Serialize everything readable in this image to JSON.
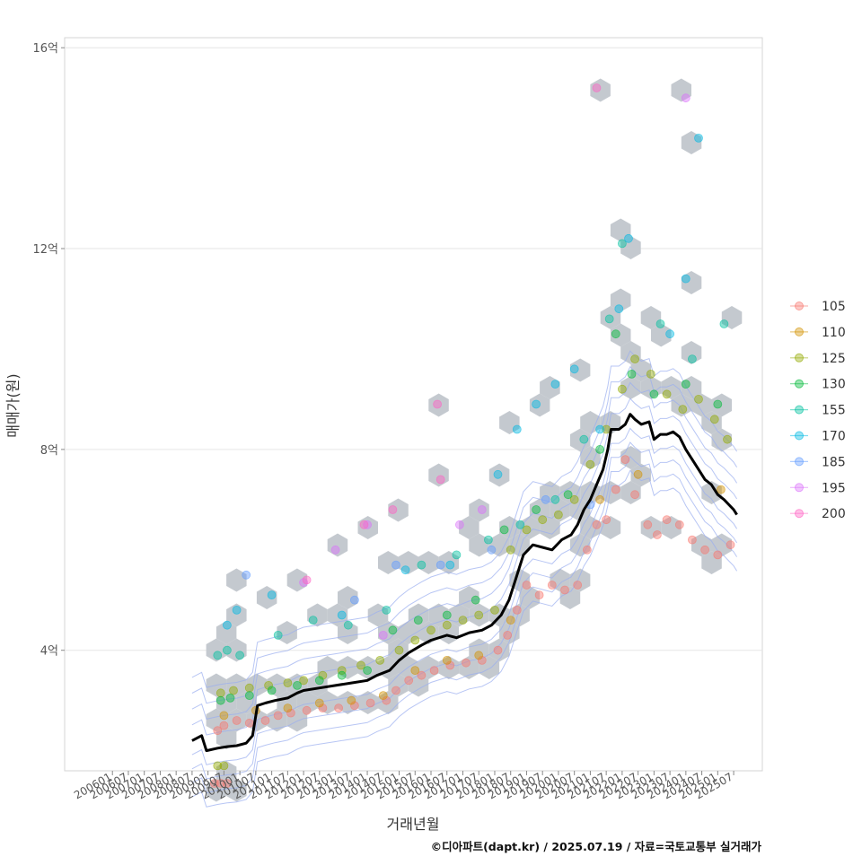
{
  "chart_data": {
    "type": "scatter",
    "title": "",
    "xlabel": "거래년월",
    "ylabel": "매매가(원)",
    "caption": "©디아파트(dapt.kr) / 2025.07.19 / 자료=국토교통부 실거래가",
    "x_range": [
      2004.5,
      2026.4
    ],
    "y_range_eok": [
      1.6,
      16.2
    ],
    "y_ticks": [
      {
        "value": 4,
        "label": "4억"
      },
      {
        "value": 8,
        "label": "8억"
      },
      {
        "value": 12,
        "label": "12억"
      },
      {
        "value": 16,
        "label": "16억"
      }
    ],
    "x_ticks": [
      "200601",
      "200607",
      "200701",
      "200707",
      "200801",
      "200807",
      "200901",
      "200907",
      "201001",
      "201007",
      "201101",
      "201107",
      "201201",
      "201207",
      "201301",
      "201307",
      "201401",
      "201407",
      "201501",
      "201507",
      "201601",
      "201607",
      "201701",
      "201707",
      "201801",
      "201807",
      "201901",
      "201907",
      "202001",
      "202007",
      "202101",
      "202107",
      "202201",
      "202207",
      "202301",
      "202307",
      "202401",
      "202407",
      "202501",
      "202507"
    ],
    "legend": {
      "placement": "right",
      "items": [
        {
          "label": "105",
          "color": "#F8766D"
        },
        {
          "label": "110",
          "color": "#D39200"
        },
        {
          "label": "125",
          "color": "#93AA00"
        },
        {
          "label": "130",
          "color": "#00BA38"
        },
        {
          "label": "155",
          "color": "#00C19F"
        },
        {
          "label": "170",
          "color": "#00B9E3"
        },
        {
          "label": "185",
          "color": "#619CFF"
        },
        {
          "label": "195",
          "color": "#DB72FB"
        },
        {
          "label": "200",
          "color": "#FF61C3"
        }
      ]
    },
    "median_line": {
      "name": "median price",
      "color": "#000000",
      "points": [
        [
          2008.5,
          2.2
        ],
        [
          2008.8,
          2.3
        ],
        [
          2008.95,
          2.0
        ],
        [
          2009.3,
          2.05
        ],
        [
          2009.6,
          2.08
        ],
        [
          2009.9,
          2.1
        ],
        [
          2010.2,
          2.15
        ],
        [
          2010.4,
          2.3
        ],
        [
          2010.55,
          2.9
        ],
        [
          2010.8,
          2.95
        ],
        [
          2011.1,
          3.0
        ],
        [
          2011.5,
          3.05
        ],
        [
          2011.8,
          3.15
        ],
        [
          2012.0,
          3.2
        ],
        [
          2012.5,
          3.25
        ],
        [
          2013.0,
          3.3
        ],
        [
          2013.5,
          3.35
        ],
        [
          2014.0,
          3.4
        ],
        [
          2014.3,
          3.5
        ],
        [
          2014.7,
          3.6
        ],
        [
          2015.0,
          3.8
        ],
        [
          2015.3,
          3.95
        ],
        [
          2015.7,
          4.1
        ],
        [
          2016.0,
          4.2
        ],
        [
          2016.5,
          4.3
        ],
        [
          2016.8,
          4.25
        ],
        [
          2017.2,
          4.35
        ],
        [
          2017.6,
          4.4
        ],
        [
          2017.9,
          4.5
        ],
        [
          2018.2,
          4.7
        ],
        [
          2018.45,
          5.0
        ],
        [
          2018.7,
          5.5
        ],
        [
          2018.9,
          5.9
        ],
        [
          2019.2,
          6.1
        ],
        [
          2019.5,
          6.05
        ],
        [
          2019.8,
          6.0
        ],
        [
          2020.1,
          6.2
        ],
        [
          2020.4,
          6.3
        ],
        [
          2020.6,
          6.5
        ],
        [
          2020.8,
          6.8
        ],
        [
          2021.0,
          7.0
        ],
        [
          2021.2,
          7.3
        ],
        [
          2021.4,
          7.6
        ],
        [
          2021.55,
          8.0
        ],
        [
          2021.65,
          8.4
        ],
        [
          2021.9,
          8.4
        ],
        [
          2022.1,
          8.5
        ],
        [
          2022.25,
          8.7
        ],
        [
          2022.4,
          8.6
        ],
        [
          2022.6,
          8.5
        ],
        [
          2022.85,
          8.55
        ],
        [
          2023.0,
          8.2
        ],
        [
          2023.2,
          8.3
        ],
        [
          2023.4,
          8.3
        ],
        [
          2023.6,
          8.35
        ],
        [
          2023.8,
          8.25
        ],
        [
          2024.0,
          8.0
        ],
        [
          2024.2,
          7.8
        ],
        [
          2024.4,
          7.6
        ],
        [
          2024.6,
          7.4
        ],
        [
          2024.8,
          7.3
        ],
        [
          2025.0,
          7.1
        ],
        [
          2025.2,
          7.0
        ],
        [
          2025.35,
          6.9
        ],
        [
          2025.5,
          6.8
        ],
        [
          2025.6,
          6.7
        ]
      ]
    },
    "series": [
      {
        "name": "105",
        "points": [
          [
            2009.2,
            1.35
          ],
          [
            2009.4,
            1.35
          ],
          [
            2009.6,
            1.35
          ],
          [
            2009.3,
            2.4
          ],
          [
            2009.5,
            2.5
          ],
          [
            2009.9,
            2.6
          ],
          [
            2010.3,
            2.55
          ],
          [
            2010.8,
            2.6
          ],
          [
            2011.2,
            2.7
          ],
          [
            2011.6,
            2.75
          ],
          [
            2012.1,
            2.8
          ],
          [
            2012.6,
            2.85
          ],
          [
            2013.1,
            2.85
          ],
          [
            2013.6,
            2.9
          ],
          [
            2014.1,
            2.95
          ],
          [
            2014.6,
            3.0
          ],
          [
            2014.9,
            3.2
          ],
          [
            2015.3,
            3.4
          ],
          [
            2015.7,
            3.5
          ],
          [
            2016.1,
            3.6
          ],
          [
            2016.6,
            3.7
          ],
          [
            2017.1,
            3.75
          ],
          [
            2017.6,
            3.8
          ],
          [
            2018.1,
            4.0
          ],
          [
            2018.4,
            4.3
          ],
          [
            2018.7,
            4.8
          ],
          [
            2019.0,
            5.3
          ],
          [
            2019.4,
            5.1
          ],
          [
            2019.8,
            5.3
          ],
          [
            2020.2,
            5.2
          ],
          [
            2020.6,
            5.3
          ],
          [
            2020.9,
            6.0
          ],
          [
            2021.2,
            6.5
          ],
          [
            2021.5,
            6.6
          ],
          [
            2021.8,
            7.2
          ],
          [
            2022.1,
            7.8
          ],
          [
            2022.4,
            7.1
          ],
          [
            2022.8,
            6.5
          ],
          [
            2023.1,
            6.3
          ],
          [
            2023.4,
            6.6
          ],
          [
            2023.8,
            6.5
          ],
          [
            2024.2,
            6.2
          ],
          [
            2024.6,
            6.0
          ],
          [
            2025.0,
            5.9
          ],
          [
            2025.4,
            6.1
          ]
        ]
      },
      {
        "name": "110",
        "points": [
          [
            2009.5,
            2.7
          ],
          [
            2010.5,
            2.8
          ],
          [
            2011.5,
            2.85
          ],
          [
            2012.5,
            2.95
          ],
          [
            2013.5,
            3.0
          ],
          [
            2014.5,
            3.1
          ],
          [
            2015.5,
            3.6
          ],
          [
            2016.5,
            3.8
          ],
          [
            2017.5,
            3.9
          ],
          [
            2018.5,
            4.6
          ],
          [
            2021.3,
            7.0
          ],
          [
            2022.5,
            7.5
          ],
          [
            2025.1,
            7.2
          ]
        ]
      },
      {
        "name": "125",
        "points": [
          [
            2009.3,
            1.7
          ],
          [
            2009.5,
            1.7
          ],
          [
            2009.4,
            3.15
          ],
          [
            2009.8,
            3.2
          ],
          [
            2010.3,
            3.25
          ],
          [
            2010.9,
            3.3
          ],
          [
            2011.5,
            3.35
          ],
          [
            2012.0,
            3.4
          ],
          [
            2012.6,
            3.5
          ],
          [
            2013.2,
            3.6
          ],
          [
            2013.8,
            3.7
          ],
          [
            2014.4,
            3.8
          ],
          [
            2015.0,
            4.0
          ],
          [
            2015.5,
            4.2
          ],
          [
            2016.0,
            4.4
          ],
          [
            2016.5,
            4.5
          ],
          [
            2017.0,
            4.6
          ],
          [
            2017.5,
            4.7
          ],
          [
            2018.0,
            4.8
          ],
          [
            2018.5,
            6.0
          ],
          [
            2019.0,
            6.4
          ],
          [
            2019.5,
            6.6
          ],
          [
            2020.0,
            6.7
          ],
          [
            2020.5,
            7.0
          ],
          [
            2021.0,
            7.7
          ],
          [
            2021.5,
            8.4
          ],
          [
            2022.0,
            9.2
          ],
          [
            2022.4,
            9.8
          ],
          [
            2022.9,
            9.5
          ],
          [
            2023.4,
            9.1
          ],
          [
            2023.9,
            8.8
          ],
          [
            2024.4,
            9.0
          ],
          [
            2024.9,
            8.6
          ],
          [
            2025.3,
            8.2
          ]
        ]
      },
      {
        "name": "130",
        "points": [
          [
            2009.4,
            3.0
          ],
          [
            2009.7,
            3.05
          ],
          [
            2010.3,
            3.1
          ],
          [
            2011.0,
            3.2
          ],
          [
            2011.8,
            3.3
          ],
          [
            2012.5,
            3.4
          ],
          [
            2013.2,
            3.5
          ],
          [
            2014.0,
            3.6
          ],
          [
            2014.8,
            4.4
          ],
          [
            2015.6,
            4.6
          ],
          [
            2016.5,
            4.7
          ],
          [
            2017.4,
            5.0
          ],
          [
            2018.3,
            6.4
          ],
          [
            2019.3,
            6.8
          ],
          [
            2020.3,
            7.1
          ],
          [
            2021.3,
            8.0
          ],
          [
            2021.8,
            10.3
          ],
          [
            2022.3,
            9.5
          ],
          [
            2023.0,
            9.1
          ],
          [
            2024.0,
            9.3
          ],
          [
            2025.0,
            8.9
          ]
        ]
      },
      {
        "name": "155",
        "points": [
          [
            2009.3,
            3.9
          ],
          [
            2009.6,
            4.0
          ],
          [
            2010.0,
            3.9
          ],
          [
            2011.2,
            4.3
          ],
          [
            2012.3,
            4.6
          ],
          [
            2013.4,
            4.5
          ],
          [
            2014.6,
            4.8
          ],
          [
            2015.7,
            5.7
          ],
          [
            2016.8,
            5.9
          ],
          [
            2017.8,
            6.2
          ],
          [
            2018.8,
            6.5
          ],
          [
            2019.9,
            7.0
          ],
          [
            2020.8,
            8.2
          ],
          [
            2021.6,
            10.6
          ],
          [
            2022.0,
            12.1
          ],
          [
            2023.2,
            10.5
          ],
          [
            2024.2,
            9.8
          ],
          [
            2025.2,
            10.5
          ]
        ]
      },
      {
        "name": "170",
        "points": [
          [
            2009.6,
            4.5
          ],
          [
            2009.9,
            4.8
          ],
          [
            2011.0,
            5.1
          ],
          [
            2013.2,
            4.7
          ],
          [
            2015.2,
            5.6
          ],
          [
            2016.6,
            5.7
          ],
          [
            2018.1,
            7.5
          ],
          [
            2018.7,
            8.4
          ],
          [
            2019.3,
            8.9
          ],
          [
            2019.9,
            9.3
          ],
          [
            2020.5,
            9.6
          ],
          [
            2021.3,
            8.4
          ],
          [
            2021.9,
            10.8
          ],
          [
            2022.2,
            12.2
          ],
          [
            2023.5,
            10.3
          ],
          [
            2024.0,
            11.4
          ],
          [
            2024.4,
            14.2
          ]
        ]
      },
      {
        "name": "185",
        "points": [
          [
            2010.2,
            5.5
          ],
          [
            2013.6,
            5.0
          ],
          [
            2014.9,
            5.7
          ],
          [
            2016.3,
            5.7
          ],
          [
            2017.9,
            6.0
          ],
          [
            2019.6,
            7.0
          ],
          [
            2021.0,
            6.9
          ]
        ]
      },
      {
        "name": "195",
        "points": [
          [
            2012.0,
            5.35
          ],
          [
            2013.0,
            6.0
          ],
          [
            2014.0,
            6.5
          ],
          [
            2014.5,
            4.3
          ],
          [
            2016.9,
            6.5
          ],
          [
            2017.6,
            6.8
          ],
          [
            2024.0,
            15.0
          ]
        ]
      },
      {
        "name": "200",
        "points": [
          [
            2012.1,
            5.4
          ],
          [
            2013.9,
            6.5
          ],
          [
            2014.8,
            6.8
          ],
          [
            2016.2,
            8.9
          ],
          [
            2016.3,
            7.4
          ],
          [
            2021.2,
            15.2
          ]
        ]
      }
    ]
  }
}
